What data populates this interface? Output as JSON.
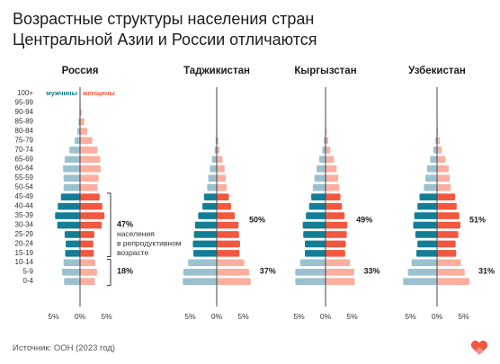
{
  "title": "Возрастные структуры населения стран Центральной Азии и России отличаются",
  "source": "Источник: ООН (2023 год)",
  "legend": {
    "male": "мужчины",
    "female": "женщины"
  },
  "colors": {
    "male_light": "#9bc1cf",
    "male_dark": "#137e96",
    "female_light": "#fcae9f",
    "female_dark": "#f2573f",
    "axis": "#444444",
    "logo": "#f2573f"
  },
  "chart_data": {
    "type": "bar",
    "subtype": "population-pyramid",
    "age_groups": [
      "100+",
      "95-99",
      "90-94",
      "85-89",
      "80-84",
      "75-79",
      "70-74",
      "65-69",
      "60-64",
      "55-59",
      "50-54",
      "45-49",
      "40-44",
      "35-39",
      "30-34",
      "25-29",
      "20-24",
      "15-19",
      "10-14",
      "5-9",
      "0-4"
    ],
    "reproductive_age_groups": [
      "45-49",
      "40-44",
      "35-39",
      "30-34",
      "25-29",
      "20-24",
      "15-19"
    ],
    "x_ticks": [
      "5%",
      "0%",
      "5%"
    ],
    "xlim": [
      -6.5,
      6.5
    ],
    "panels": [
      {
        "country": "Россия",
        "male": [
          0,
          0,
          0.1,
          0.3,
          0.5,
          1.0,
          2.0,
          2.9,
          3.2,
          3.1,
          3.1,
          3.6,
          4.2,
          4.7,
          4.3,
          2.9,
          2.7,
          2.8,
          3.1,
          3.4,
          3.0
        ],
        "female": [
          0,
          0.1,
          0.3,
          0.8,
          1.4,
          2.3,
          3.3,
          3.8,
          3.9,
          3.5,
          3.3,
          3.7,
          4.2,
          4.6,
          4.1,
          2.7,
          2.5,
          2.6,
          2.9,
          3.2,
          2.8
        ],
        "annotations": [
          {
            "label": "47%",
            "note": "населения в репродуктивном возрасте"
          },
          {
            "label": "18%"
          }
        ]
      },
      {
        "country": "Таджикистан",
        "male": [
          0,
          0,
          0,
          0,
          0.1,
          0.2,
          0.4,
          0.9,
          1.3,
          1.6,
          1.8,
          2.4,
          2.7,
          3.5,
          4.1,
          4.3,
          4.5,
          4.4,
          5.4,
          6.3,
          6.4
        ],
        "female": [
          0,
          0,
          0,
          0,
          0.1,
          0.3,
          0.5,
          1.1,
          1.5,
          1.7,
          1.9,
          2.3,
          2.7,
          3.4,
          4.1,
          4.2,
          4.4,
          4.3,
          5.2,
          6.1,
          6.4
        ],
        "annotations": [
          {
            "label": "50%"
          },
          {
            "label": "37%"
          }
        ]
      },
      {
        "country": "Кыргызстан",
        "male": [
          0,
          0,
          0,
          0,
          0.1,
          0.3,
          0.6,
          1.2,
          1.7,
          2.1,
          2.4,
          2.7,
          3.1,
          3.7,
          4.3,
          4.2,
          3.9,
          3.9,
          4.8,
          5.7,
          5.7
        ],
        "female": [
          0,
          0,
          0,
          0.1,
          0.2,
          0.5,
          0.9,
          1.6,
          2.1,
          2.4,
          2.6,
          2.8,
          3.1,
          3.6,
          4.1,
          4.0,
          3.8,
          3.7,
          4.6,
          5.4,
          5.5
        ],
        "annotations": [
          {
            "label": "49%"
          },
          {
            "label": "33%"
          }
        ]
      },
      {
        "country": "Узбекистан",
        "male": [
          0,
          0,
          0,
          0,
          0.1,
          0.3,
          0.7,
          1.3,
          1.9,
          2.2,
          2.5,
          3.3,
          3.7,
          4.3,
          4.5,
          4.1,
          3.7,
          3.9,
          4.8,
          5.5,
          6.4
        ],
        "female": [
          0,
          0,
          0,
          0.1,
          0.2,
          0.5,
          0.9,
          1.6,
          2.2,
          2.4,
          2.6,
          3.4,
          3.7,
          4.2,
          4.4,
          4.0,
          3.5,
          3.6,
          4.5,
          5.2,
          6.1
        ],
        "annotations": [
          {
            "label": "51%"
          },
          {
            "label": "31%"
          }
        ]
      }
    ]
  }
}
